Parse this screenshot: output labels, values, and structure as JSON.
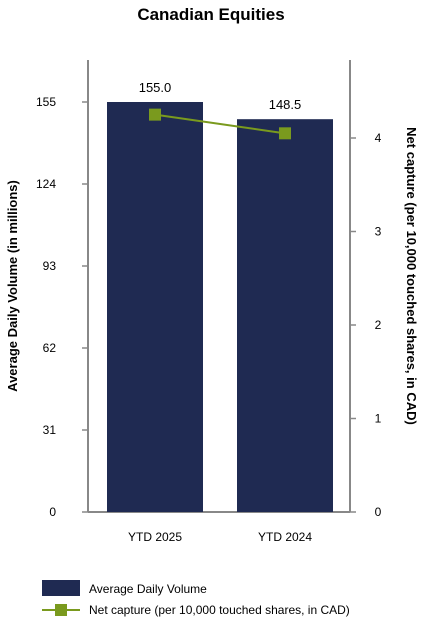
{
  "chart_data": {
    "type": "bar",
    "title": "Canadian Equities",
    "categories": [
      "YTD 2025",
      "YTD 2024"
    ],
    "series": [
      {
        "name": "Average Daily Volume",
        "type": "bar",
        "axis": "left",
        "values": [
          155.0,
          148.5
        ],
        "value_labels": [
          "155.0",
          "148.5"
        ],
        "color": "#1f2a52"
      },
      {
        "name": "Net capture (per 10,000 touched shares, in CAD)",
        "type": "line",
        "axis": "right",
        "values": [
          4.25,
          4.05
        ],
        "color": "#7a9a1e"
      }
    ],
    "y_left": {
      "label": "Average Daily Volume (in millions)",
      "ticks": [
        "0",
        "31",
        "62",
        "93",
        "124",
        "155"
      ],
      "range": [
        0,
        155
      ]
    },
    "y_right": {
      "label": "Net capture (per 10,000 touched shares, in CAD)",
      "ticks": [
        "0",
        "1",
        "2",
        "3",
        "4"
      ],
      "range": [
        0,
        4.4
      ]
    },
    "legend_position": "bottom-left",
    "grid": false
  }
}
